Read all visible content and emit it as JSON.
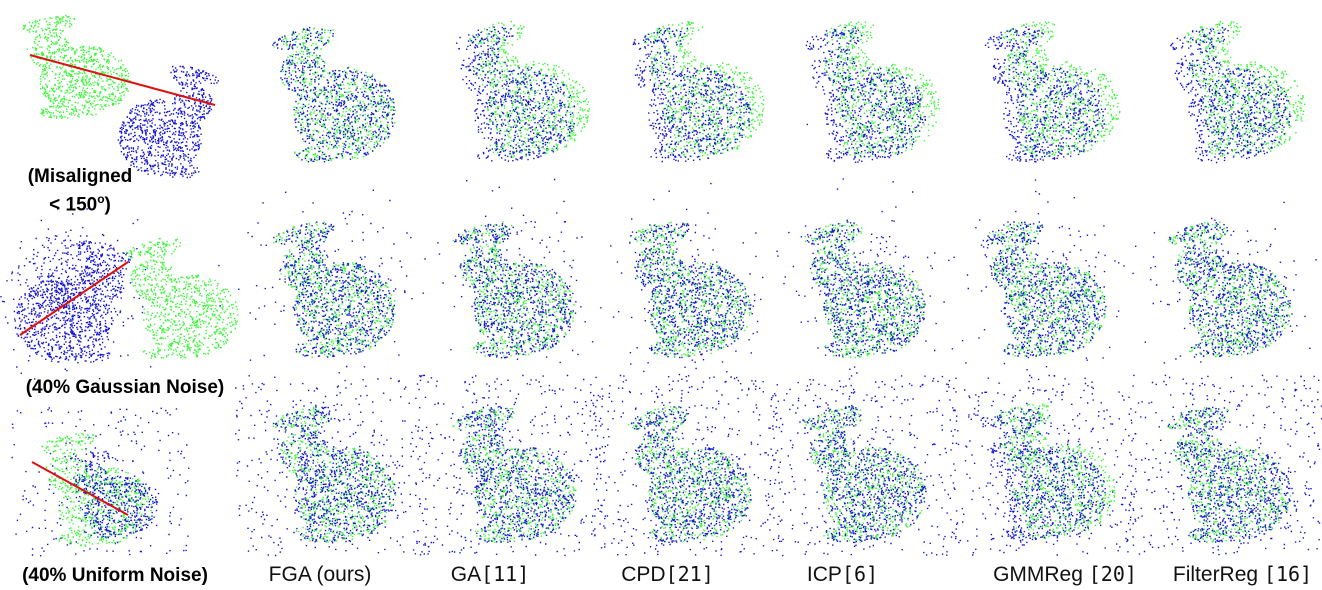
{
  "figure": {
    "colors": {
      "source": "#1414d2",
      "target": "#3df53a",
      "misalignment_line": "#dd1111"
    },
    "rows": [
      {
        "label_line1": "(Misaligned",
        "label_line2": "< 150",
        "label_sup": "o",
        "label_tail": ")"
      },
      {
        "label": "(40% Gaussian Noise)"
      },
      {
        "label": "(40% Uniform Noise)"
      }
    ],
    "columns": [
      {
        "name": "FGA (ours)",
        "ref": ""
      },
      {
        "name": "GA",
        "ref": "[11]"
      },
      {
        "name": "CPD",
        "ref": "[21]"
      },
      {
        "name": "ICP",
        "ref": "[6]"
      },
      {
        "name": "GMMReg",
        "ref": "[20]"
      },
      {
        "name": "FilterReg",
        "ref": "[16]"
      }
    ]
  }
}
